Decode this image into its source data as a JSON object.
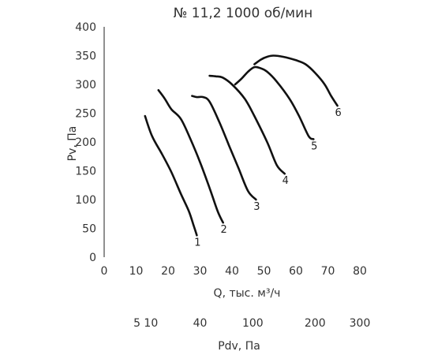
{
  "chart_data": {
    "type": "line",
    "title": "№ 11,2 1000 об/мин",
    "xlabel": "Q, тыс. м³/ч",
    "ylabel": "Pv, Па",
    "xlim": [
      0,
      80
    ],
    "ylim": [
      0,
      400
    ],
    "x_ticks": [
      "0",
      "10",
      "20",
      "30",
      "40",
      "50",
      "60",
      "70",
      "80"
    ],
    "y_ticks": [
      "0",
      "50",
      "100",
      "150",
      "200",
      "250",
      "300",
      "350",
      "400"
    ],
    "grid": false,
    "secondary_axis": {
      "label": "Pdv, Па",
      "ticks": [
        {
          "label": "5 10",
          "q": 13
        },
        {
          "label": "40",
          "q": 30
        },
        {
          "label": "100",
          "q": 46.5
        },
        {
          "label": "200",
          "q": 66
        },
        {
          "label": "300",
          "q": 80
        }
      ]
    },
    "series": [
      {
        "name": "1",
        "points": [
          [
            12.8,
            245
          ],
          [
            15,
            210
          ],
          [
            18,
            180
          ],
          [
            21,
            148
          ],
          [
            24,
            110
          ],
          [
            26.5,
            80
          ],
          [
            28,
            55
          ],
          [
            29,
            38
          ]
        ]
      },
      {
        "name": "2",
        "points": [
          [
            17,
            290
          ],
          [
            19,
            275
          ],
          [
            21,
            257
          ],
          [
            24,
            240
          ],
          [
            27,
            205
          ],
          [
            30,
            165
          ],
          [
            33,
            120
          ],
          [
            35.5,
            80
          ],
          [
            37.2,
            60
          ]
        ]
      },
      {
        "name": "3",
        "points": [
          [
            27.5,
            280
          ],
          [
            29,
            278
          ],
          [
            31,
            278
          ],
          [
            33,
            270
          ],
          [
            36,
            235
          ],
          [
            39,
            195
          ],
          [
            42,
            155
          ],
          [
            45,
            115
          ],
          [
            47.5,
            100
          ]
        ]
      },
      {
        "name": "4",
        "points": [
          [
            33,
            315
          ],
          [
            35,
            314
          ],
          [
            37,
            312
          ],
          [
            40,
            300
          ],
          [
            44,
            275
          ],
          [
            47,
            245
          ],
          [
            51,
            200
          ],
          [
            54,
            160
          ],
          [
            56.5,
            145
          ]
        ]
      },
      {
        "name": "5",
        "points": [
          [
            41,
            300
          ],
          [
            43,
            310
          ],
          [
            45,
            322
          ],
          [
            47,
            330
          ],
          [
            49,
            328
          ],
          [
            51,
            322
          ],
          [
            54,
            305
          ],
          [
            58,
            275
          ],
          [
            61,
            245
          ],
          [
            64,
            210
          ],
          [
            65.5,
            205
          ]
        ]
      },
      {
        "name": "6",
        "points": [
          [
            47,
            335
          ],
          [
            49,
            343
          ],
          [
            51,
            348
          ],
          [
            53,
            350
          ],
          [
            56,
            348
          ],
          [
            60,
            342
          ],
          [
            63,
            335
          ],
          [
            66,
            320
          ],
          [
            69,
            300
          ],
          [
            71,
            280
          ],
          [
            73,
            263
          ]
        ]
      }
    ]
  }
}
